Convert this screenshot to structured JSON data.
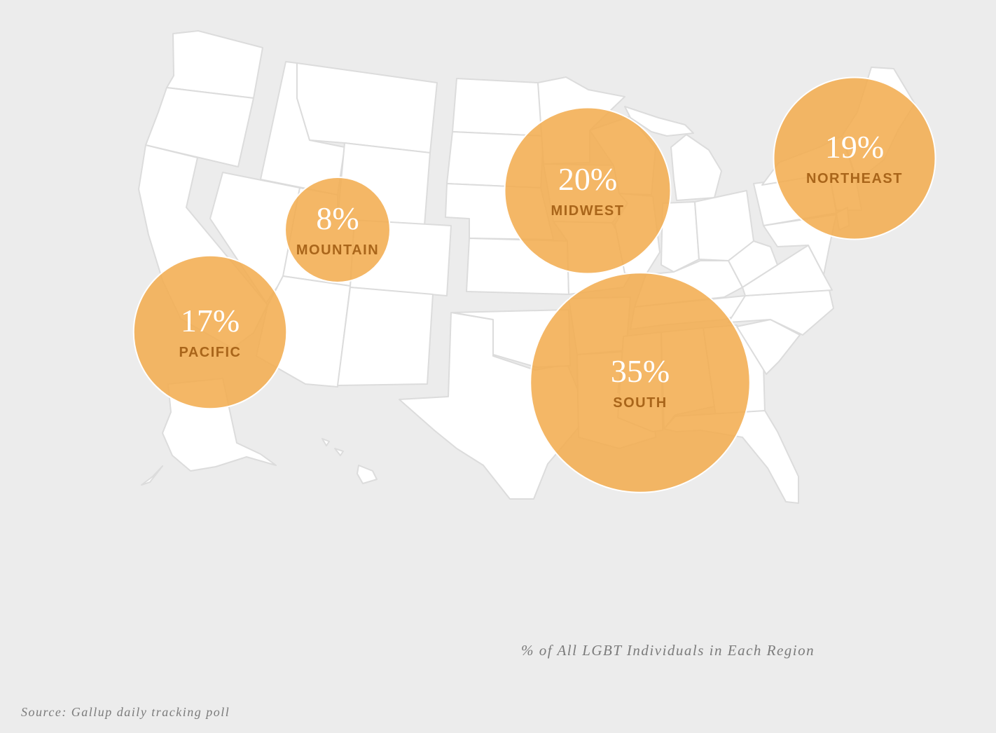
{
  "legend": {
    "title": "% of All LGBT Individuals in Each Region"
  },
  "source": "Source: Gallup daily tracking poll",
  "colors": {
    "background": "#ececec",
    "state_fill": "#ffffff",
    "bubble": "#f2ad51",
    "region_label": "#a9651a"
  },
  "chart_data": {
    "type": "bubble-map",
    "unit": "% of All LGBT Individuals in Each Region",
    "regions": [
      {
        "key": "pacific",
        "name": "PACIFIC",
        "label": "17%",
        "value": 17
      },
      {
        "key": "mountain",
        "name": "MOUNTAIN",
        "label": "8%",
        "value": 8
      },
      {
        "key": "midwest",
        "name": "MIDWEST",
        "label": "20%",
        "value": 20
      },
      {
        "key": "northeast",
        "name": "NORTHEAST",
        "label": "19%",
        "value": 19
      },
      {
        "key": "south",
        "name": "SOUTH",
        "label": "35%",
        "value": 35
      }
    ]
  }
}
